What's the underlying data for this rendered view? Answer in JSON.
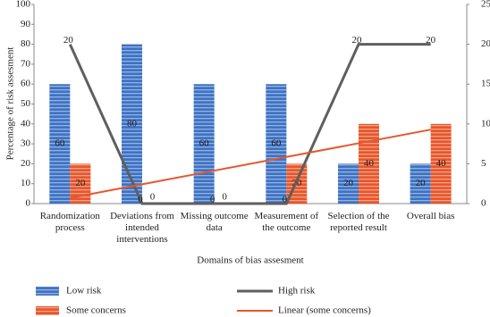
{
  "chart_data": {
    "type": "bar",
    "y_label": "Percentage of risk assesment",
    "x_label": "Domains of bias assesment",
    "categories": [
      "Randomization process",
      "Deviations from intended interventions",
      "Missing outcome data",
      "Measurement of the outcome",
      "Selection of the reported result",
      "Overall bias"
    ],
    "ylim": [
      0,
      100
    ],
    "yticks": [
      0,
      10,
      20,
      30,
      40,
      50,
      60,
      70,
      80,
      90,
      100
    ],
    "y2lim": [
      0,
      25
    ],
    "y2ticks": [
      0,
      5,
      10,
      15,
      20,
      25
    ],
    "series": [
      {
        "name": "Low risk",
        "color": "#3d72c4",
        "kind": "bar",
        "values": [
          60,
          80,
          60,
          60,
          20,
          20
        ]
      },
      {
        "name": "Some concerns",
        "color": "#e8562a",
        "kind": "bar",
        "values": [
          20,
          0,
          0,
          20,
          40,
          40
        ]
      },
      {
        "name": "High risk",
        "color": "#5f5f5f",
        "kind": "line",
        "axis": "y2",
        "values": [
          20,
          0,
          0,
          0,
          20,
          20
        ]
      },
      {
        "name": "Linear (some concerns)",
        "color": "#e8562a",
        "kind": "line",
        "values": [
          2.86,
          9.71,
          16.57,
          23.43,
          30.29,
          37.14
        ]
      }
    ]
  }
}
